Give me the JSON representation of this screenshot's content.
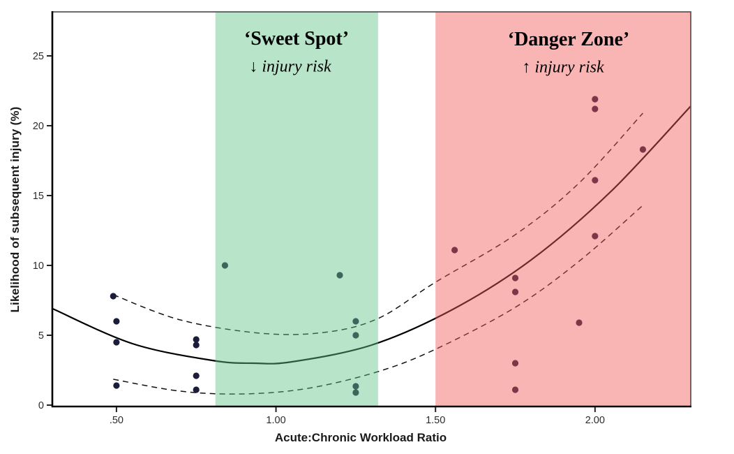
{
  "chart_data": {
    "type": "scatter",
    "title": "",
    "xlabel": "Acute:Chronic Workload Ratio",
    "ylabel": "Likelihood of subsequent injury (%)",
    "x_axis": {
      "min": 0.299,
      "max": 2.3,
      "ticks": [
        {
          "value": 0.5,
          "label": ".50"
        },
        {
          "value": 1.0,
          "label": "1.00"
        },
        {
          "value": 1.5,
          "label": "1.50"
        },
        {
          "value": 2.0,
          "label": "2.00"
        }
      ]
    },
    "y_axis": {
      "min": -0.1,
      "max": 28.15,
      "ticks": [
        {
          "value": 0,
          "label": "0"
        },
        {
          "value": 5,
          "label": "5"
        },
        {
          "value": 10,
          "label": "10"
        },
        {
          "value": 15,
          "label": "15"
        },
        {
          "value": 20,
          "label": "20"
        },
        {
          "value": 25,
          "label": "25"
        }
      ]
    },
    "grid": false,
    "legend": "none",
    "zones": {
      "sweet_spot": {
        "label": "‘Sweet Spot’",
        "sublabel_arrow": "↓",
        "sublabel_text": " injury risk",
        "x_range": [
          0.81,
          1.32
        ],
        "overlay_color": "rgba(97,195,136,0.45)"
      },
      "danger_zone": {
        "label": "‘Danger Zone’",
        "sublabel_arrow": "↑",
        "sublabel_text": " injury risk",
        "x_range": [
          1.5,
          2.3
        ],
        "overlay_color": "rgba(242,88,88,0.45)"
      }
    },
    "series": [
      {
        "name": "injury-likelihood-points",
        "type": "scatter",
        "color": "#1b1b3a",
        "marker_radius": 4.6,
        "points": [
          [
            0.49,
            7.8
          ],
          [
            0.5,
            6.0
          ],
          [
            0.5,
            4.5
          ],
          [
            0.5,
            1.4
          ],
          [
            0.75,
            4.7
          ],
          [
            0.75,
            4.3
          ],
          [
            0.75,
            2.1
          ],
          [
            0.75,
            1.1
          ],
          [
            0.84,
            10.0
          ],
          [
            1.2,
            9.3
          ],
          [
            1.25,
            6.0
          ],
          [
            1.25,
            5.0
          ],
          [
            1.25,
            1.35
          ],
          [
            1.25,
            0.9
          ],
          [
            1.56,
            11.1
          ],
          [
            1.75,
            9.1
          ],
          [
            1.75,
            8.1
          ],
          [
            1.75,
            3.0
          ],
          [
            1.75,
            1.1
          ],
          [
            1.95,
            5.9
          ],
          [
            2.0,
            21.9
          ],
          [
            2.0,
            21.2
          ],
          [
            2.0,
            16.1
          ],
          [
            2.0,
            12.1
          ],
          [
            2.15,
            18.3
          ]
        ]
      },
      {
        "name": "fitted-curve",
        "type": "line",
        "style": "solid",
        "color": "#000000",
        "width": 2.2,
        "points": [
          [
            0.3,
            6.9
          ],
          [
            0.55,
            4.4
          ],
          [
            0.8,
            3.2
          ],
          [
            0.93,
            3.0
          ],
          [
            1.05,
            3.1
          ],
          [
            1.3,
            4.3
          ],
          [
            1.55,
            6.8
          ],
          [
            1.8,
            10.4
          ],
          [
            2.05,
            15.3
          ],
          [
            2.3,
            21.4
          ]
        ]
      },
      {
        "name": "upper-confidence-band",
        "type": "line",
        "style": "dashed",
        "color": "#111111",
        "width": 1.5,
        "points": [
          [
            0.49,
            7.9
          ],
          [
            0.7,
            6.1
          ],
          [
            0.95,
            5.15
          ],
          [
            1.15,
            5.2
          ],
          [
            1.32,
            6.2
          ],
          [
            1.5,
            8.8
          ],
          [
            1.75,
            12.2
          ],
          [
            1.95,
            15.9
          ],
          [
            2.15,
            20.9
          ]
        ]
      },
      {
        "name": "lower-confidence-band",
        "type": "line",
        "style": "dashed",
        "color": "#111111",
        "width": 1.5,
        "points": [
          [
            0.49,
            1.85
          ],
          [
            0.7,
            1.0
          ],
          [
            0.9,
            0.8
          ],
          [
            1.1,
            1.2
          ],
          [
            1.32,
            2.4
          ],
          [
            1.5,
            4.0
          ],
          [
            1.75,
            7.0
          ],
          [
            1.95,
            10.3
          ],
          [
            2.15,
            14.3
          ]
        ]
      }
    ],
    "frame_color": "#5a5a5a",
    "axis_color": "#000000",
    "tick_label_color": "#2b2b2b"
  }
}
